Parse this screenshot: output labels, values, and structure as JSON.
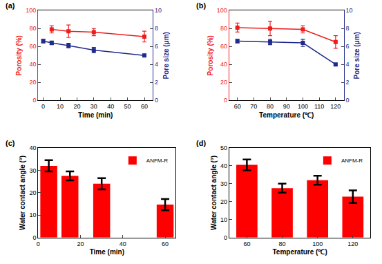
{
  "chart_data": [
    {
      "type": "line",
      "title": "(a)",
      "xlabel": "Time (min)",
      "ylabel": "Porosity (%)",
      "y2label": "Pore size (μm)",
      "x": [
        0,
        5,
        15,
        30,
        60
      ],
      "xlim": [
        -3,
        65
      ],
      "xticks": [
        0,
        10,
        20,
        30,
        40,
        50,
        60
      ],
      "ylim": [
        0,
        100
      ],
      "yticks": [
        0,
        20,
        40,
        60,
        80,
        100
      ],
      "y2lim": [
        0,
        10
      ],
      "y2ticks": [
        0,
        2,
        4,
        6,
        8,
        10
      ],
      "grid": false,
      "series": [
        {
          "color": "#ee1c1c",
          "marker": "square",
          "line_style": "solid",
          "values": [
            null,
            79,
            77,
            76,
            71
          ],
          "errors": [
            null,
            4,
            7,
            4,
            6
          ]
        },
        {
          "color": "#1f2a8a",
          "marker": "square",
          "line_style": "solid",
          "axis": "y2",
          "values": [
            6.6,
            6.4,
            6.1,
            5.6,
            5.0
          ],
          "errors": [
            0.2,
            0.2,
            0.25,
            0.3,
            0.15
          ]
        }
      ]
    },
    {
      "type": "line",
      "title": "(b)",
      "xlabel": "Temperature (℃)",
      "ylabel": "Porosity (%)",
      "y2label": "Pore size (μm)",
      "x": [
        60,
        80,
        100,
        120
      ],
      "xlim": [
        55,
        125
      ],
      "xticks": [
        60,
        70,
        80,
        90,
        100,
        110,
        120
      ],
      "ylim": [
        0,
        100
      ],
      "yticks": [
        0,
        20,
        40,
        60,
        80,
        100
      ],
      "y2lim": [
        0,
        10
      ],
      "y2ticks": [
        0,
        2,
        4,
        6,
        8,
        10
      ],
      "grid": false,
      "series": [
        {
          "color": "#ee1c1c",
          "marker": "square",
          "line_style": "solid",
          "values": [
            81,
            80,
            79,
            65
          ],
          "errors": [
            5,
            8,
            4,
            7
          ]
        },
        {
          "color": "#1f2a8a",
          "marker": "square",
          "line_style": "solid",
          "axis": "y2",
          "values": [
            6.6,
            6.5,
            6.4,
            4.0
          ],
          "errors": [
            0.2,
            0.3,
            0.4,
            0.1
          ]
        }
      ]
    },
    {
      "type": "bar",
      "title": "(c)",
      "xlabel": "Time (min)",
      "ylabel": "Water contact angle (°)",
      "x": [
        5,
        15,
        30,
        60
      ],
      "xlim": [
        0,
        65
      ],
      "xticks": [
        0,
        20,
        40,
        60
      ],
      "ylim": [
        0,
        40
      ],
      "yticks": [
        0,
        10,
        20,
        30,
        40
      ],
      "grid": false,
      "legend": "upper right",
      "series": [
        {
          "name": "ANFM-R",
          "color": "#ff0000",
          "values": [
            32,
            27.5,
            24,
            14.7
          ],
          "errors": [
            2.5,
            2,
            2.5,
            2.5
          ]
        }
      ]
    },
    {
      "type": "bar",
      "title": "(d)",
      "xlabel": "Temperature (℃)",
      "ylabel": "Water contact angle (°)",
      "categories": [
        "60",
        "80",
        "100",
        "120"
      ],
      "ylim": [
        0,
        50
      ],
      "yticks": [
        0,
        10,
        20,
        30,
        40,
        50
      ],
      "grid": false,
      "legend": "upper right",
      "series": [
        {
          "name": "ANFM-R",
          "color": "#ff0000",
          "values": [
            40.5,
            27.5,
            32,
            22.8
          ],
          "errors": [
            3,
            2.5,
            2.5,
            3.5
          ]
        }
      ]
    }
  ]
}
